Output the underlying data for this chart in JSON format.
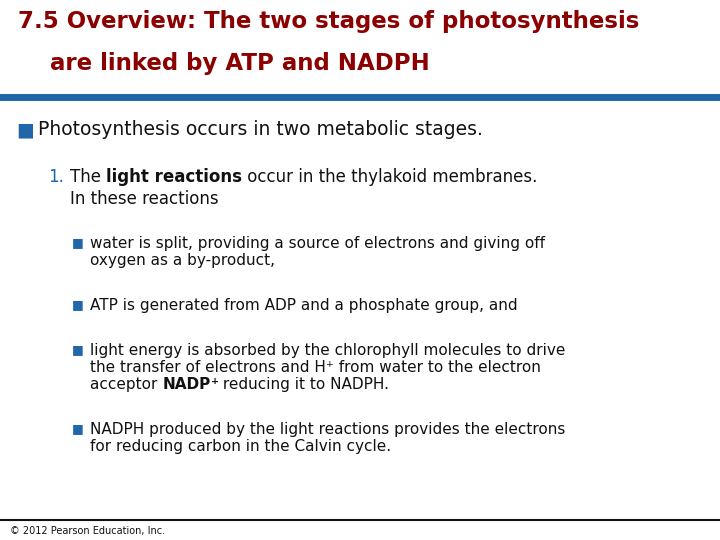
{
  "title_line1": "7.5 Overview: The two stages of photosynthesis",
  "title_line2": "    are linked by ATP and NADPH",
  "title_color": "#8B0000",
  "blue_line_color": "#2266aa",
  "black_line_color": "#111111",
  "body_text_color": "#111111",
  "blue_bullet_color": "#2266aa",
  "blue_number_color": "#2266aa",
  "bg_color": "#FFFFFF",
  "footer_text": "© 2012 Pearson Education, Inc."
}
